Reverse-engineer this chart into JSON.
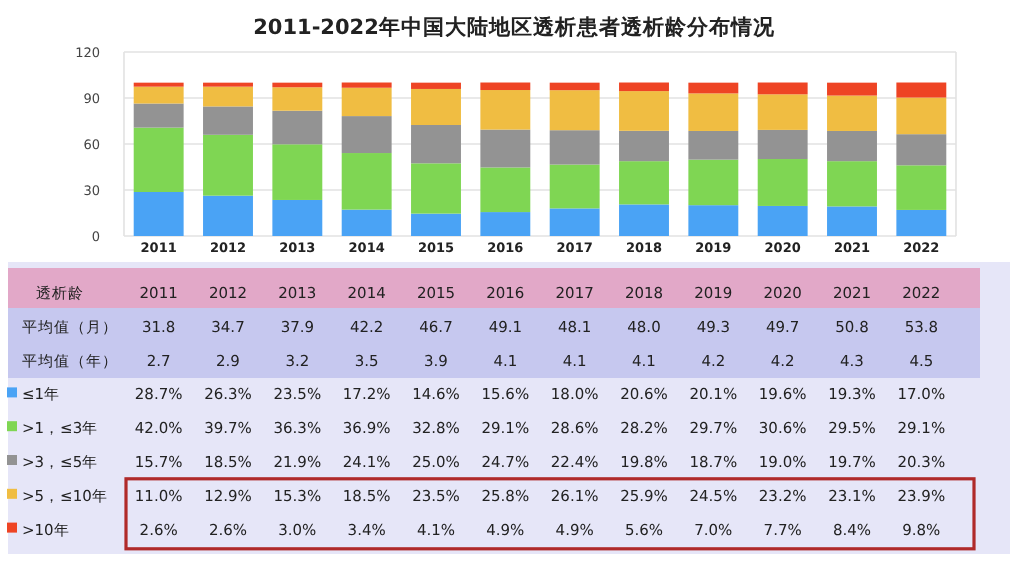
{
  "chart_data": [
    {
      "type": "bar",
      "stacked": true,
      "title": "2011-2022年中国大陆地区透析患者透析龄分布情况",
      "categories": [
        "2011",
        "2012",
        "2013",
        "2014",
        "2015",
        "2016",
        "2017",
        "2018",
        "2019",
        "2020",
        "2021",
        "2022"
      ],
      "ylim": [
        0,
        120
      ],
      "yticks": [
        0,
        30,
        60,
        90,
        120
      ],
      "grid": "y",
      "legend": "bottom",
      "series": [
        {
          "name": "≤1年",
          "color": "#4aa3f5",
          "values": [
            28.7,
            26.3,
            23.5,
            17.2,
            14.6,
            15.6,
            18.0,
            20.6,
            20.1,
            19.6,
            19.3,
            17.0
          ],
          "value_labels": [
            "28.7%",
            "26.3%",
            "23.5%",
            "17.2%",
            "14.6%",
            "15.6%",
            "18.0%",
            "20.6%",
            "20.1%",
            "19.6%",
            "19.3%",
            "17.0%"
          ]
        },
        {
          "name": ">1，≤3年",
          "color": "#7fd653",
          "values": [
            42.0,
            39.7,
            36.3,
            36.9,
            32.8,
            29.1,
            28.6,
            28.2,
            29.7,
            30.6,
            29.5,
            29.1
          ],
          "value_labels": [
            "42.0%",
            "39.7%",
            "36.3%",
            "36.9%",
            "32.8%",
            "29.1%",
            "28.6%",
            "28.2%",
            "29.7%",
            "30.6%",
            "29.5%",
            "29.1%"
          ]
        },
        {
          "name": ">3，≤5年",
          "color": "#939393",
          "values": [
            15.7,
            18.5,
            21.9,
            24.1,
            25.0,
            24.7,
            22.4,
            19.8,
            18.7,
            19.0,
            19.7,
            20.3
          ],
          "value_labels": [
            "15.7%",
            "18.5%",
            "21.9%",
            "24.1%",
            "25.0%",
            "24.7%",
            "22.4%",
            "19.8%",
            "18.7%",
            "19.0%",
            "19.7%",
            "20.3%"
          ]
        },
        {
          "name": ">5，≤10年",
          "color": "#f0bd42",
          "values": [
            11.0,
            12.9,
            15.3,
            18.5,
            23.5,
            25.8,
            26.1,
            25.9,
            24.5,
            23.2,
            23.1,
            23.9
          ],
          "value_labels": [
            "11.0%",
            "12.9%",
            "15.3%",
            "18.5%",
            "23.5%",
            "25.8%",
            "26.1%",
            "25.9%",
            "24.5%",
            "23.2%",
            "23.1%",
            "23.9%"
          ]
        },
        {
          "name": ">10年",
          "color": "#ee4424",
          "values": [
            2.6,
            2.6,
            3.0,
            3.4,
            4.1,
            4.9,
            4.9,
            5.6,
            7.0,
            7.7,
            8.4,
            9.8
          ],
          "value_labels": [
            "2.6%",
            "2.6%",
            "3.0%",
            "3.4%",
            "4.1%",
            "4.9%",
            "4.9%",
            "5.6%",
            "7.0%",
            "7.7%",
            "8.4%",
            "9.8%"
          ]
        }
      ]
    },
    {
      "type": "other",
      "annotations": [
        "透析龄",
        "平均值（月）",
        "31.8",
        "34.7",
        "37.9",
        "42.2",
        "46.7",
        "49.1",
        "48.1",
        "48.0",
        "49.3",
        "49.7",
        "50.8",
        "53.8",
        "平均值（年）",
        "2.7",
        "2.9",
        "3.2",
        "3.5",
        "3.9",
        "4.1",
        "4.1",
        "4.1",
        "4.2",
        "4.2",
        "4.3",
        "4.5"
      ]
    }
  ]
}
